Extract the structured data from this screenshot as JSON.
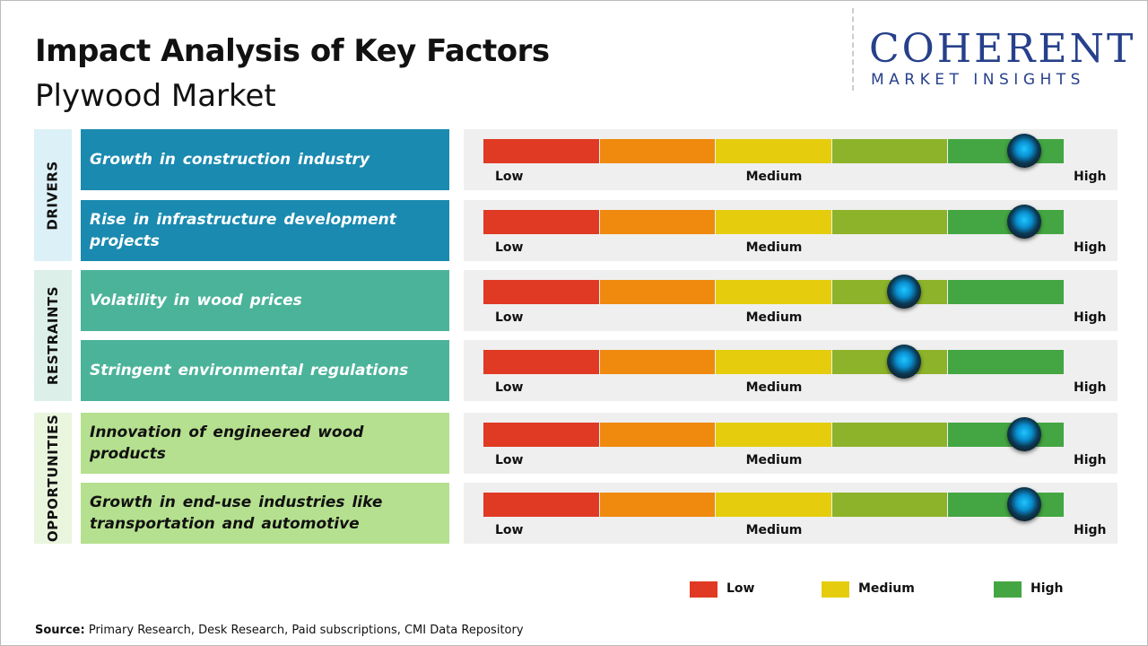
{
  "header": {
    "title": "Impact Analysis of Key Factors",
    "subtitle": "Plywood Market"
  },
  "logo": {
    "name": "COHERENT",
    "tagline": "MARKET INSIGHTS"
  },
  "scale": {
    "segments": [
      "#e03a24",
      "#ef8a0f",
      "#e5cd0e",
      "#8db32a",
      "#44a642"
    ],
    "labels": [
      "Low",
      "Medium",
      "High"
    ]
  },
  "groups": [
    {
      "name": "DRIVERS",
      "color": "#1a8ab0",
      "text_color": "#ffffff",
      "band": "#dcf0f7",
      "factors": [
        {
          "label": "Growth in construction industry",
          "impact": 4.65
        },
        {
          "label": "Rise in infrastructure development projects",
          "impact": 4.65
        }
      ]
    },
    {
      "name": "RESTRAINTS",
      "color": "#4bb39a",
      "text_color": "#ffffff",
      "band": "#dcefe9",
      "factors": [
        {
          "label": "Volatility in wood prices",
          "impact": 3.62
        },
        {
          "label": "Stringent environmental regulations",
          "impact": 3.62
        }
      ]
    },
    {
      "name": "OPPORTUNITIES",
      "color": "#b5e08f",
      "text_color": "#111111",
      "band": "#eaf5de",
      "factors": [
        {
          "label": "Innovation of engineered wood products",
          "impact": 4.65
        },
        {
          "label": "Growth in end-use industries like transportation and automotive",
          "impact": 4.65
        }
      ]
    }
  ],
  "legend": [
    {
      "label": "Low",
      "color": "#e03a24"
    },
    {
      "label": "Medium",
      "color": "#e5cd0e"
    },
    {
      "label": "High",
      "color": "#44a642"
    }
  ],
  "source": {
    "label": "Source:",
    "text": "Primary Research, Desk Research, Paid subscriptions, CMI Data Repository"
  }
}
